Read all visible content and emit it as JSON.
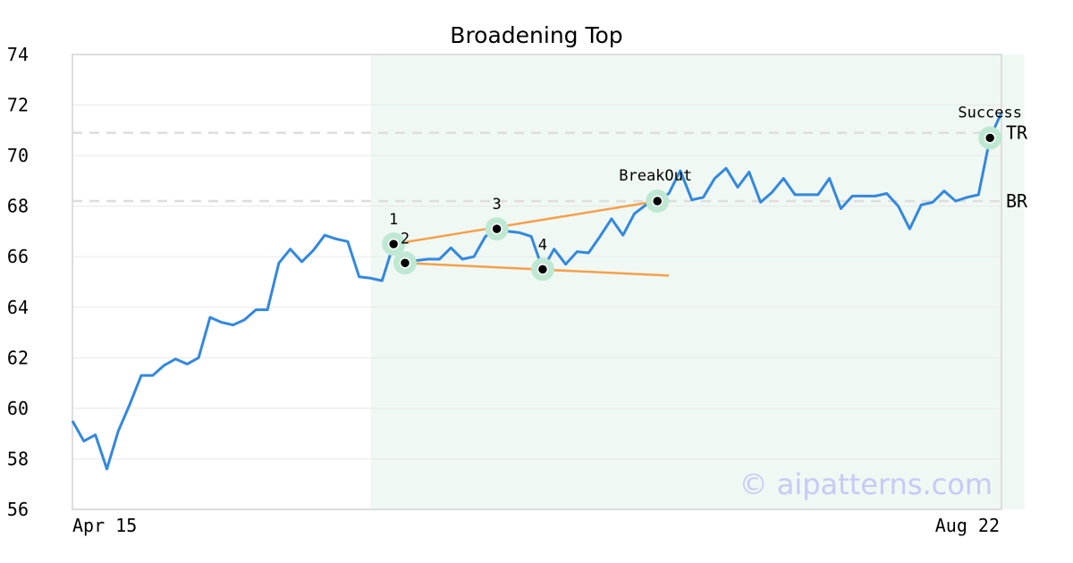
{
  "chart_data": {
    "type": "line",
    "title": "Broadening Top",
    "ylim": [
      56,
      74
    ],
    "y_ticks": [
      56,
      58,
      60,
      62,
      64,
      66,
      68,
      70,
      72,
      74
    ],
    "x_tick_labels": [
      "Apr 15",
      "Aug 22"
    ],
    "grid": true,
    "colors": {
      "line": "#3388dd",
      "trend": "#f5a04a",
      "zone": "#f0f8f4",
      "point_halo": "#bfe8d2",
      "level": "#dddddd"
    },
    "series": [
      {
        "values": [
          59.5,
          58.7,
          58.95,
          57.6,
          59.1,
          60.15,
          61.3,
          61.3,
          61.7,
          61.95,
          61.75,
          62.0,
          63.6,
          63.4,
          63.3,
          63.5,
          63.9,
          63.9,
          65.75,
          66.3,
          65.8,
          66.25,
          66.85,
          66.7,
          66.6,
          65.2,
          65.15,
          65.05,
          66.5,
          65.75,
          65.85,
          65.9,
          65.9,
          66.35,
          65.9,
          66.0,
          66.8,
          67.1,
          67.0,
          66.95,
          66.8,
          65.5,
          66.3,
          65.7,
          66.2,
          66.15,
          66.8,
          67.5,
          66.85,
          67.7,
          68.05,
          68.2,
          68.5,
          69.4,
          68.25,
          68.35,
          69.1,
          69.5,
          68.75,
          69.35,
          68.15,
          68.55,
          69.1,
          68.45,
          68.45,
          68.45,
          69.1,
          67.9,
          68.4,
          68.4,
          68.4,
          68.5,
          68.0,
          67.1,
          68.05,
          68.15,
          68.6,
          68.2,
          68.35,
          68.45,
          70.7,
          71.7
        ]
      }
    ],
    "pattern_zone": {
      "start_index": 26,
      "end_index": 83
    },
    "levels": [
      {
        "label": "TR",
        "value": 70.9
      },
      {
        "label": "BR",
        "value": 68.2
      }
    ],
    "points": [
      {
        "label": "1",
        "index": 28,
        "value": 66.5
      },
      {
        "label": "2",
        "index": 29,
        "value": 65.75
      },
      {
        "label": "3",
        "index": 37,
        "value": 67.1
      },
      {
        "label": "4",
        "index": 41,
        "value": 65.5
      },
      {
        "label": "BreakOut",
        "index": 51,
        "value": 68.2
      },
      {
        "label": "Success",
        "index": 80,
        "value": 70.7
      }
    ],
    "trend_lines": [
      {
        "from_index": 28,
        "from_value": 66.5,
        "to_index": 51,
        "to_value": 68.2
      },
      {
        "from_index": 29,
        "from_value": 65.75,
        "to_index": 52,
        "to_value": 65.25
      }
    ],
    "watermark": "© aipatterns.com"
  }
}
